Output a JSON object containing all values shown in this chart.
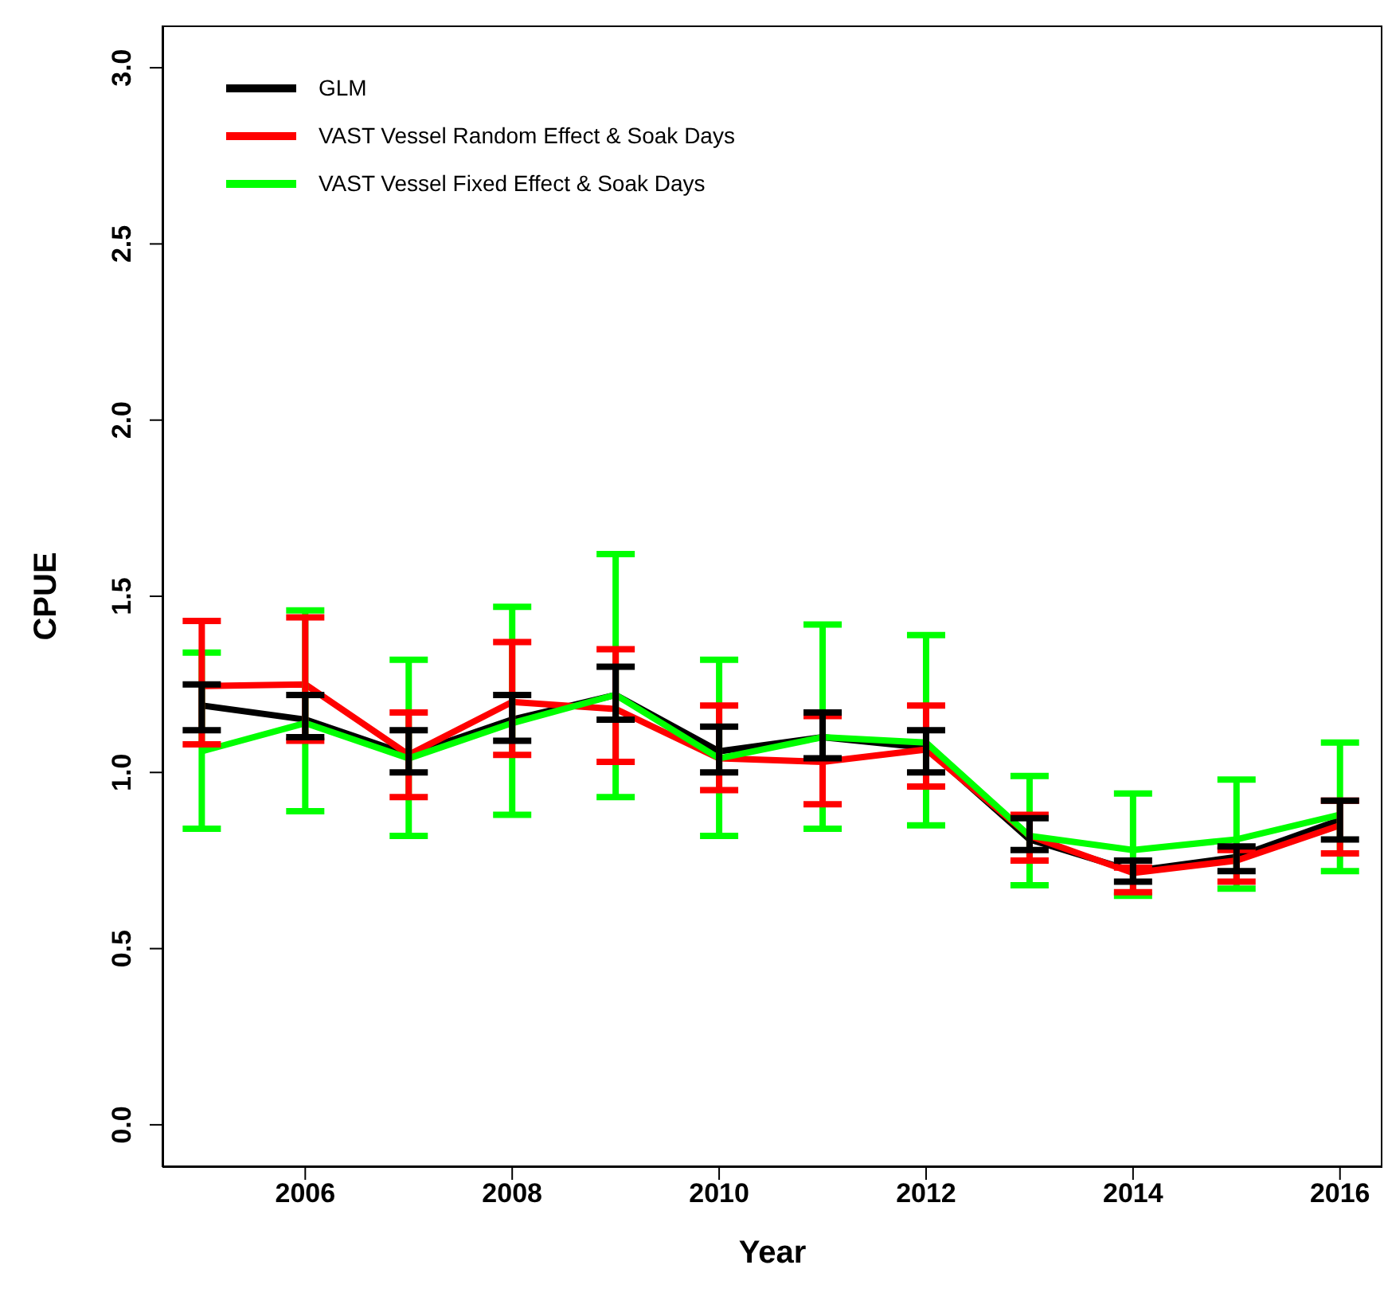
{
  "chart_data": {
    "type": "line",
    "xlabel": "Year",
    "ylabel": "CPUE",
    "x": [
      2005,
      2006,
      2007,
      2008,
      2009,
      2010,
      2011,
      2012,
      2013,
      2014,
      2015,
      2016
    ],
    "xlim": [
      2004.62,
      2016.41
    ],
    "xticks": [
      2006,
      2008,
      2010,
      2012,
      2014,
      2016
    ],
    "ylim": [
      -0.12,
      3.12
    ],
    "yticks": [
      {
        "value": 0,
        "label": "0.0"
      },
      0.5,
      {
        "value": 1,
        "label": "1.0"
      },
      1.5,
      {
        "value": 2,
        "label": "2.0"
      },
      2.5,
      {
        "value": 3,
        "label": "3.0"
      }
    ],
    "grid": false,
    "legend": "top left",
    "marker": "none",
    "line_style": "solid",
    "series": [
      {
        "name": "GLM",
        "color": "#000000",
        "values": [
          1.19,
          1.15,
          1.05,
          1.15,
          1.22,
          1.06,
          1.1,
          1.07,
          0.81,
          0.72,
          0.76,
          0.865
        ],
        "errors": [
          [
            1.12,
            1.25
          ],
          [
            1.1,
            1.22
          ],
          [
            1.0,
            1.12
          ],
          [
            1.09,
            1.22
          ],
          [
            1.15,
            1.3
          ],
          [
            1.0,
            1.13
          ],
          [
            1.04,
            1.17
          ],
          [
            1.0,
            1.12
          ],
          [
            0.78,
            0.87
          ],
          [
            0.69,
            0.75
          ],
          [
            0.72,
            0.79
          ],
          [
            0.81,
            0.92
          ]
        ]
      },
      {
        "name": "VAST Vessel Random Effect & Soak Days",
        "color": "#ff0000",
        "values": [
          1.245,
          1.25,
          1.05,
          1.2,
          1.18,
          1.04,
          1.03,
          1.065,
          0.82,
          0.715,
          0.75,
          0.85
        ],
        "errors": [
          [
            1.08,
            1.43
          ],
          [
            1.09,
            1.44
          ],
          [
            0.93,
            1.17
          ],
          [
            1.05,
            1.37
          ],
          [
            1.03,
            1.35
          ],
          [
            0.95,
            1.19
          ],
          [
            0.91,
            1.16
          ],
          [
            0.96,
            1.19
          ],
          [
            0.75,
            0.88
          ],
          [
            0.66,
            0.73
          ],
          [
            0.69,
            0.78
          ],
          [
            0.77,
            0.92
          ]
        ]
      },
      {
        "name": "VAST Vessel Fixed Effect & Soak Days",
        "color": "#00ff00",
        "values": [
          1.06,
          1.14,
          1.04,
          1.14,
          1.22,
          1.04,
          1.1,
          1.085,
          0.82,
          0.78,
          0.81,
          0.88
        ],
        "errors": [
          [
            0.84,
            1.34
          ],
          [
            0.89,
            1.46
          ],
          [
            0.82,
            1.32
          ],
          [
            0.88,
            1.47
          ],
          [
            0.93,
            1.62
          ],
          [
            0.82,
            1.32
          ],
          [
            0.84,
            1.42
          ],
          [
            0.85,
            1.39
          ],
          [
            0.68,
            0.99
          ],
          [
            0.65,
            0.94
          ],
          [
            0.67,
            0.98
          ],
          [
            0.72,
            1.085
          ]
        ]
      }
    ]
  }
}
